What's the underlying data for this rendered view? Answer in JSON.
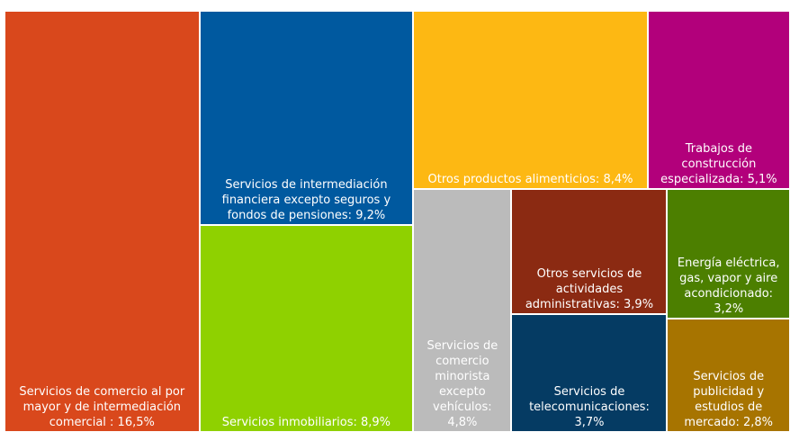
{
  "chart_data": {
    "type": "treemap",
    "categories": [
      "Servicios de comercio al por mayor y de intermediación comercial :",
      "Servicios de intermediación financiera excepto seguros y fondos de pensiones:",
      "Servicios inmobiliarios:",
      "Otros productos alimenticios:",
      "Trabajos de construcción especializada:",
      "Servicios de comercio minorista excepto vehículos:",
      "Otros servicios de actividades administrativas:",
      "Servicios de telecomunicaciones:",
      "Energía eléctrica, gas, vapor y aire acondicionado:",
      "Servicios de publicidad y estudios de mercado:"
    ],
    "values": [
      16.5,
      9.2,
      8.9,
      8.4,
      5.1,
      4.8,
      3.9,
      3.7,
      3.2,
      2.8
    ],
    "value_labels": [
      "16,5%",
      "9,2%",
      "8,9%",
      "8,4%",
      "5,1%",
      "4,8%",
      "3,9%",
      "3,7%",
      "3,2%",
      "2,8%"
    ],
    "colors": [
      "#d9481c",
      "#00599f",
      "#8fd100",
      "#fdb813",
      "#b2007b",
      "#bbbbbb",
      "#8b2a12",
      "#053b63",
      "#4c7f00",
      "#a77400"
    ]
  }
}
